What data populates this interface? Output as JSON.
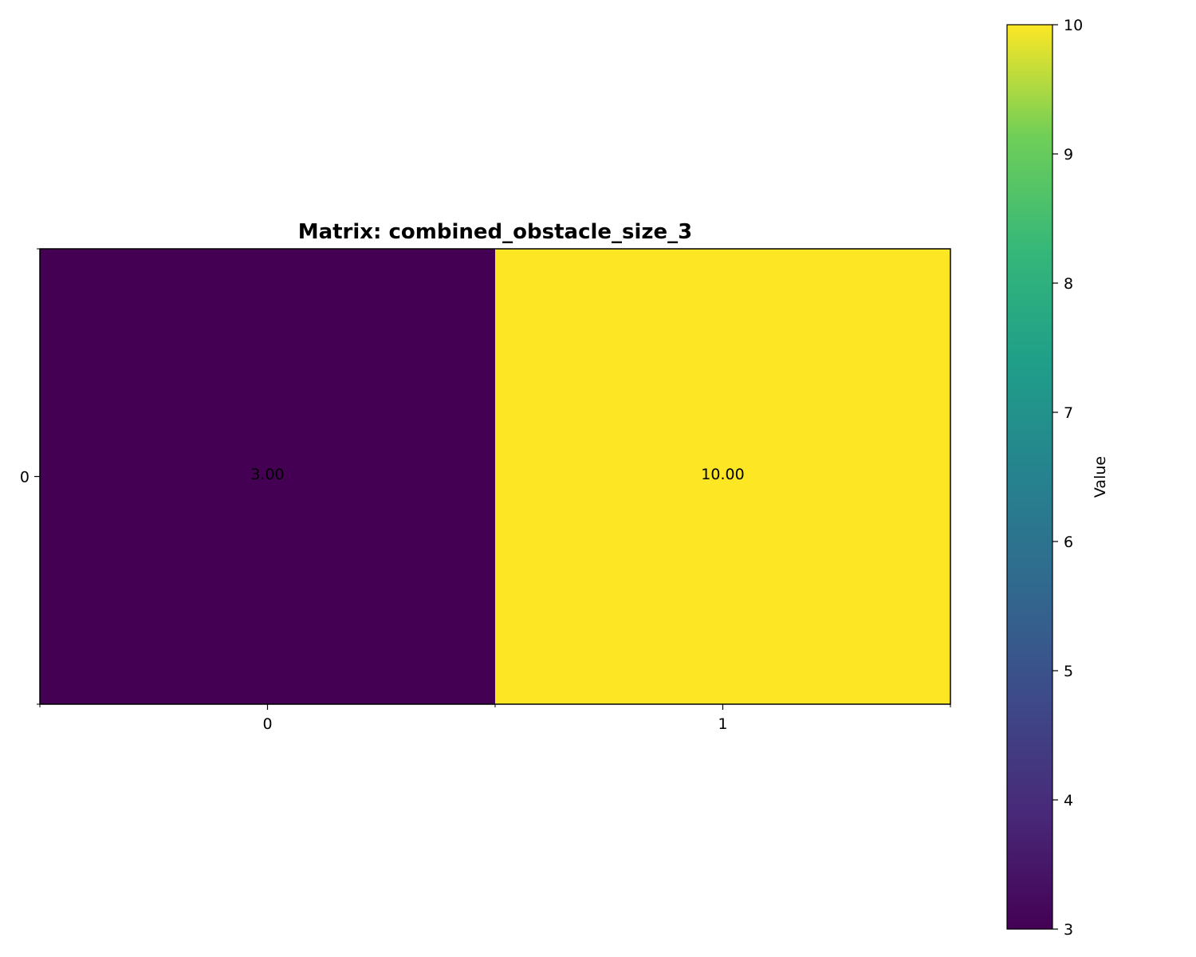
{
  "chart_data": {
    "type": "heatmap",
    "title": "Matrix: combined_obstacle_size_3",
    "xlabel": "",
    "ylabel": "",
    "x_categories": [
      "0",
      "1"
    ],
    "y_categories": [
      "0"
    ],
    "values": [
      [
        3.0,
        10.0
      ]
    ],
    "cell_labels": [
      [
        "3.00",
        "10.00"
      ]
    ],
    "colormap": "viridis",
    "colorbar": {
      "label": "Value",
      "range": [
        3,
        10
      ],
      "ticks": [
        "3",
        "4",
        "5",
        "6",
        "7",
        "8",
        "9",
        "10"
      ]
    },
    "grid": false
  }
}
